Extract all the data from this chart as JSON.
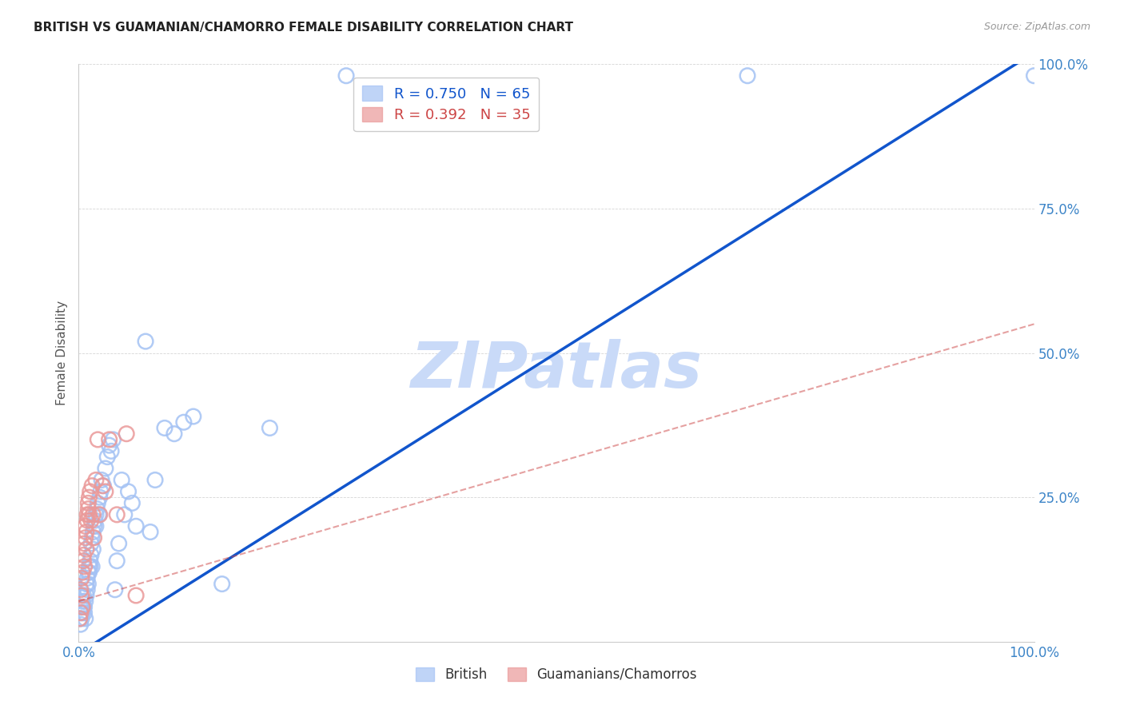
{
  "title": "BRITISH VS GUAMANIAN/CHAMORRO FEMALE DISABILITY CORRELATION CHART",
  "source": "Source: ZipAtlas.com",
  "ylabel": "Female Disability",
  "xlim": [
    0,
    1.0
  ],
  "ylim": [
    0,
    1.0
  ],
  "british_R": 0.75,
  "british_N": 65,
  "chamorro_R": 0.392,
  "chamorro_N": 35,
  "british_color": "#a4c2f4",
  "chamorro_color": "#ea9999",
  "british_line_color": "#1155cc",
  "chamorro_line_color": "#cc4444",
  "watermark_color": "#c9daf8",
  "legend_labels": [
    "British",
    "Guamanians/Chamorros"
  ],
  "british_points": [
    [
      0.001,
      0.04
    ],
    [
      0.002,
      0.03
    ],
    [
      0.002,
      0.06
    ],
    [
      0.003,
      0.05
    ],
    [
      0.003,
      0.04
    ],
    [
      0.004,
      0.07
    ],
    [
      0.004,
      0.05
    ],
    [
      0.005,
      0.06
    ],
    [
      0.005,
      0.08
    ],
    [
      0.006,
      0.05
    ],
    [
      0.006,
      0.06
    ],
    [
      0.007,
      0.04
    ],
    [
      0.007,
      0.07
    ],
    [
      0.008,
      0.1
    ],
    [
      0.008,
      0.08
    ],
    [
      0.009,
      0.09
    ],
    [
      0.009,
      0.11
    ],
    [
      0.01,
      0.1
    ],
    [
      0.01,
      0.12
    ],
    [
      0.011,
      0.13
    ],
    [
      0.011,
      0.12
    ],
    [
      0.012,
      0.14
    ],
    [
      0.012,
      0.13
    ],
    [
      0.013,
      0.15
    ],
    [
      0.013,
      0.17
    ],
    [
      0.014,
      0.13
    ],
    [
      0.014,
      0.18
    ],
    [
      0.015,
      0.16
    ],
    [
      0.015,
      0.19
    ],
    [
      0.016,
      0.2
    ],
    [
      0.017,
      0.21
    ],
    [
      0.018,
      0.22
    ],
    [
      0.018,
      0.2
    ],
    [
      0.019,
      0.23
    ],
    [
      0.02,
      0.24
    ],
    [
      0.021,
      0.22
    ],
    [
      0.022,
      0.25
    ],
    [
      0.023,
      0.26
    ],
    [
      0.024,
      0.28
    ],
    [
      0.026,
      0.27
    ],
    [
      0.028,
      0.3
    ],
    [
      0.03,
      0.32
    ],
    [
      0.032,
      0.34
    ],
    [
      0.034,
      0.33
    ],
    [
      0.036,
      0.35
    ],
    [
      0.038,
      0.09
    ],
    [
      0.04,
      0.14
    ],
    [
      0.042,
      0.17
    ],
    [
      0.045,
      0.28
    ],
    [
      0.048,
      0.22
    ],
    [
      0.052,
      0.26
    ],
    [
      0.056,
      0.24
    ],
    [
      0.06,
      0.2
    ],
    [
      0.07,
      0.52
    ],
    [
      0.075,
      0.19
    ],
    [
      0.08,
      0.28
    ],
    [
      0.09,
      0.37
    ],
    [
      0.1,
      0.36
    ],
    [
      0.11,
      0.38
    ],
    [
      0.12,
      0.39
    ],
    [
      0.15,
      0.1
    ],
    [
      0.2,
      0.37
    ],
    [
      0.28,
      0.98
    ],
    [
      0.7,
      0.98
    ],
    [
      1.0,
      0.98
    ]
  ],
  "chamorro_points": [
    [
      0.001,
      0.04
    ],
    [
      0.002,
      0.05
    ],
    [
      0.002,
      0.09
    ],
    [
      0.003,
      0.08
    ],
    [
      0.003,
      0.11
    ],
    [
      0.004,
      0.06
    ],
    [
      0.004,
      0.12
    ],
    [
      0.005,
      0.14
    ],
    [
      0.005,
      0.15
    ],
    [
      0.006,
      0.13
    ],
    [
      0.006,
      0.17
    ],
    [
      0.007,
      0.18
    ],
    [
      0.007,
      0.2
    ],
    [
      0.008,
      0.19
    ],
    [
      0.008,
      0.16
    ],
    [
      0.009,
      0.21
    ],
    [
      0.009,
      0.22
    ],
    [
      0.01,
      0.24
    ],
    [
      0.01,
      0.23
    ],
    [
      0.011,
      0.25
    ],
    [
      0.011,
      0.22
    ],
    [
      0.012,
      0.26
    ],
    [
      0.013,
      0.21
    ],
    [
      0.014,
      0.27
    ],
    [
      0.015,
      0.22
    ],
    [
      0.016,
      0.18
    ],
    [
      0.018,
      0.28
    ],
    [
      0.02,
      0.35
    ],
    [
      0.022,
      0.22
    ],
    [
      0.025,
      0.27
    ],
    [
      0.028,
      0.26
    ],
    [
      0.032,
      0.35
    ],
    [
      0.04,
      0.22
    ],
    [
      0.05,
      0.36
    ],
    [
      0.06,
      0.08
    ]
  ],
  "british_line": {
    "x0": 0.0,
    "y0": -0.02,
    "x1": 1.0,
    "y1": 1.02
  },
  "chamorro_line": {
    "x0": 0.0,
    "y0": 0.07,
    "x1": 1.0,
    "y1": 0.55
  }
}
